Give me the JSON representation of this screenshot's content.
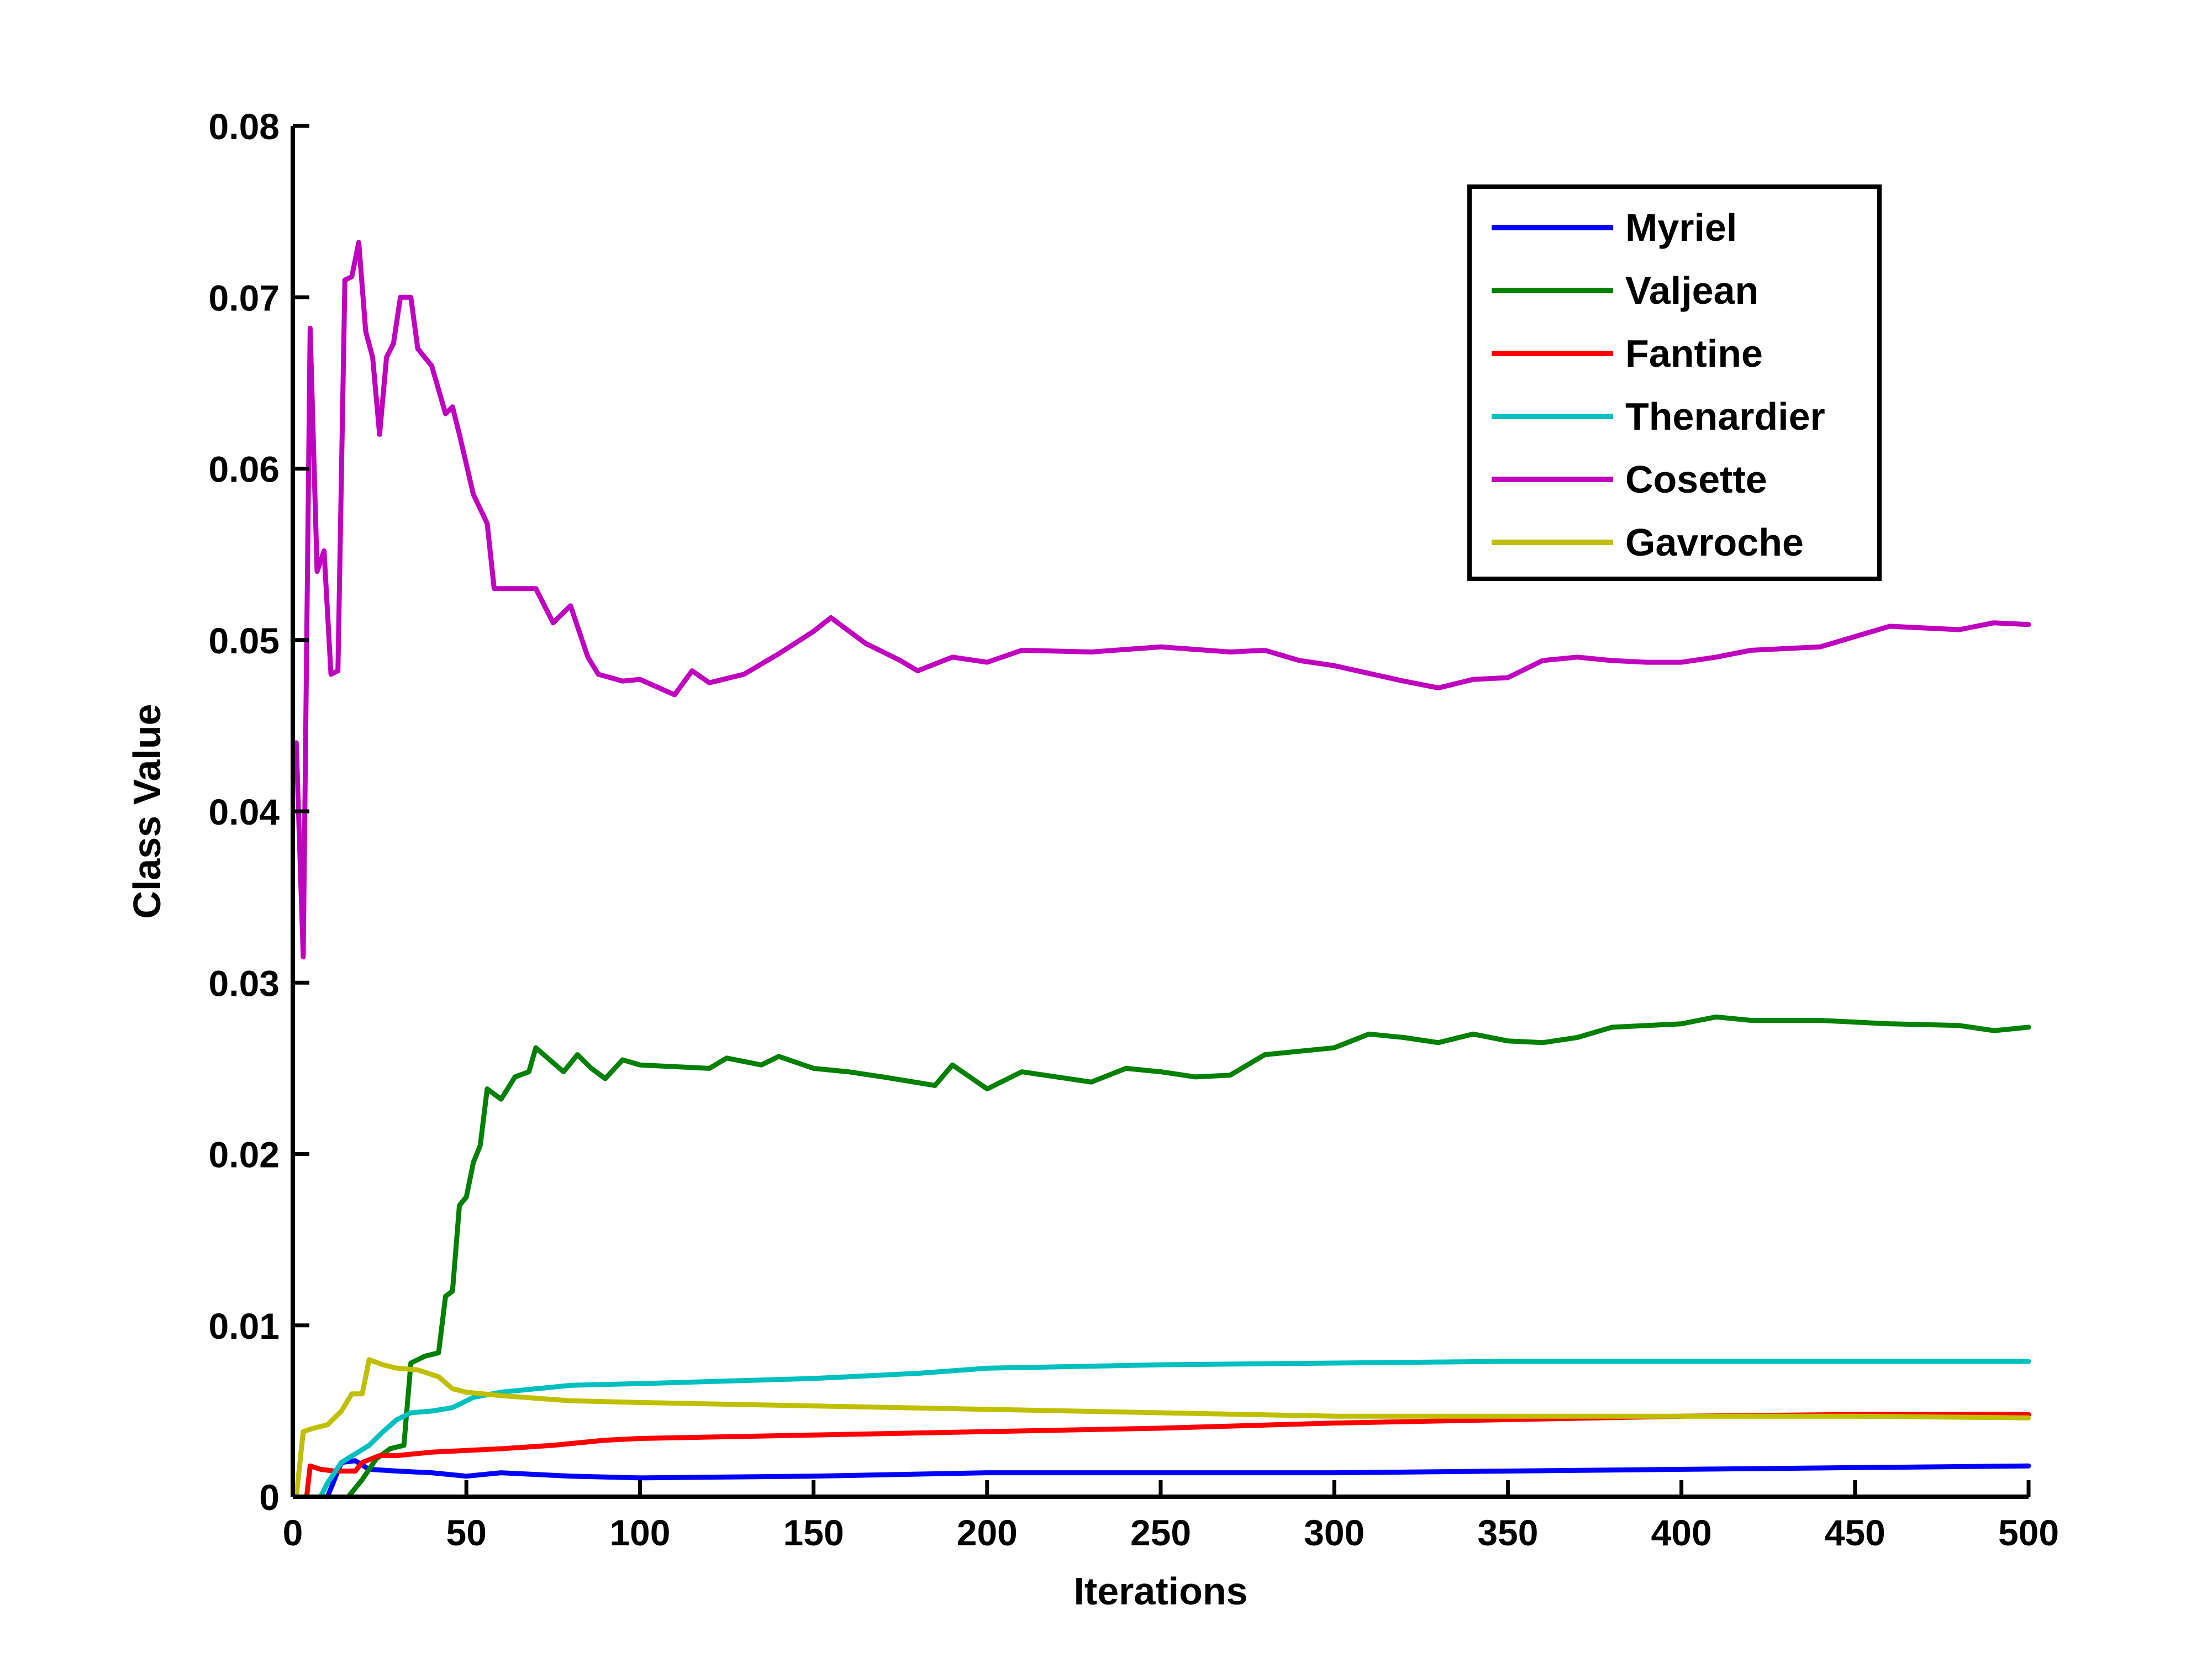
{
  "chart_data": {
    "type": "line",
    "title": "",
    "xlabel": "Iterations",
    "ylabel": "Class Value",
    "xlim": [
      0,
      500
    ],
    "ylim": [
      0,
      0.08
    ],
    "xticks": [
      "0",
      "50",
      "100",
      "150",
      "200",
      "250",
      "300",
      "350",
      "400",
      "450",
      "500"
    ],
    "yticks": [
      "0",
      "0.01",
      "0.02",
      "0.03",
      "0.04",
      "0.05",
      "0.06",
      "0.07",
      "0.08"
    ],
    "grid": false,
    "legend_position": "top-right",
    "series": [
      {
        "name": "Myriel",
        "color": "#0000ff",
        "points": [
          [
            10,
            0
          ],
          [
            14,
            0.002
          ],
          [
            18,
            0.0021
          ],
          [
            22,
            0.0016
          ],
          [
            30,
            0.0015
          ],
          [
            40,
            0.0014
          ],
          [
            50,
            0.0012
          ],
          [
            60,
            0.0014
          ],
          [
            80,
            0.0012
          ],
          [
            100,
            0.0011
          ],
          [
            150,
            0.0012
          ],
          [
            200,
            0.0014
          ],
          [
            250,
            0.0014
          ],
          [
            300,
            0.0014
          ],
          [
            350,
            0.0015
          ],
          [
            400,
            0.0016
          ],
          [
            450,
            0.0017
          ],
          [
            500,
            0.0018
          ]
        ]
      },
      {
        "name": "Valjean",
        "color": "#008000",
        "points": [
          [
            16,
            0
          ],
          [
            20,
            0.001
          ],
          [
            24,
            0.0022
          ],
          [
            28,
            0.0028
          ],
          [
            32,
            0.003
          ],
          [
            34,
            0.0078
          ],
          [
            38,
            0.0082
          ],
          [
            42,
            0.0084
          ],
          [
            44,
            0.0117
          ],
          [
            46,
            0.012
          ],
          [
            48,
            0.017
          ],
          [
            50,
            0.0175
          ],
          [
            52,
            0.0195
          ],
          [
            54,
            0.0205
          ],
          [
            56,
            0.0238
          ],
          [
            60,
            0.0232
          ],
          [
            64,
            0.0245
          ],
          [
            68,
            0.0248
          ],
          [
            70,
            0.0262
          ],
          [
            74,
            0.0255
          ],
          [
            78,
            0.0248
          ],
          [
            82,
            0.0258
          ],
          [
            86,
            0.025
          ],
          [
            90,
            0.0244
          ],
          [
            95,
            0.0255
          ],
          [
            100,
            0.0252
          ],
          [
            120,
            0.025
          ],
          [
            125,
            0.0256
          ],
          [
            135,
            0.0252
          ],
          [
            140,
            0.0257
          ],
          [
            150,
            0.025
          ],
          [
            160,
            0.0248
          ],
          [
            170,
            0.0245
          ],
          [
            185,
            0.024
          ],
          [
            190,
            0.0252
          ],
          [
            200,
            0.0238
          ],
          [
            210,
            0.0248
          ],
          [
            220,
            0.0245
          ],
          [
            230,
            0.0242
          ],
          [
            240,
            0.025
          ],
          [
            250,
            0.0248
          ],
          [
            260,
            0.0245
          ],
          [
            270,
            0.0246
          ],
          [
            280,
            0.0258
          ],
          [
            300,
            0.0262
          ],
          [
            310,
            0.027
          ],
          [
            320,
            0.0268
          ],
          [
            330,
            0.0265
          ],
          [
            340,
            0.027
          ],
          [
            350,
            0.0266
          ],
          [
            360,
            0.0265
          ],
          [
            370,
            0.0268
          ],
          [
            380,
            0.0274
          ],
          [
            400,
            0.0276
          ],
          [
            410,
            0.028
          ],
          [
            420,
            0.0278
          ],
          [
            440,
            0.0278
          ],
          [
            460,
            0.0276
          ],
          [
            480,
            0.0275
          ],
          [
            490,
            0.0272
          ],
          [
            500,
            0.0274
          ]
        ]
      },
      {
        "name": "Fantine",
        "color": "#ff0000",
        "points": [
          [
            4,
            0
          ],
          [
            5,
            0.0018
          ],
          [
            8,
            0.0016
          ],
          [
            12,
            0.0015
          ],
          [
            18,
            0.0015
          ],
          [
            20,
            0.002
          ],
          [
            25,
            0.0024
          ],
          [
            30,
            0.0024
          ],
          [
            40,
            0.0026
          ],
          [
            50,
            0.0027
          ],
          [
            60,
            0.0028
          ],
          [
            75,
            0.003
          ],
          [
            90,
            0.0033
          ],
          [
            100,
            0.0034
          ],
          [
            150,
            0.0036
          ],
          [
            200,
            0.0038
          ],
          [
            250,
            0.004
          ],
          [
            300,
            0.0043
          ],
          [
            350,
            0.0045
          ],
          [
            400,
            0.0047
          ],
          [
            450,
            0.0048
          ],
          [
            500,
            0.0048
          ]
        ]
      },
      {
        "name": "Thenardier",
        "color": "#00bfbf",
        "points": [
          [
            8,
            0
          ],
          [
            10,
            0.0008
          ],
          [
            14,
            0.002
          ],
          [
            18,
            0.0025
          ],
          [
            22,
            0.003
          ],
          [
            26,
            0.0038
          ],
          [
            30,
            0.0045
          ],
          [
            34,
            0.0049
          ],
          [
            40,
            0.005
          ],
          [
            46,
            0.0052
          ],
          [
            52,
            0.0058
          ],
          [
            60,
            0.0061
          ],
          [
            70,
            0.0063
          ],
          [
            80,
            0.0065
          ],
          [
            100,
            0.0066
          ],
          [
            150,
            0.0069
          ],
          [
            180,
            0.0072
          ],
          [
            200,
            0.0075
          ],
          [
            250,
            0.0077
          ],
          [
            300,
            0.0078
          ],
          [
            350,
            0.0079
          ],
          [
            400,
            0.0079
          ],
          [
            450,
            0.0079
          ],
          [
            500,
            0.0079
          ]
        ]
      },
      {
        "name": "Cosette",
        "color": "#bf00bf",
        "points": [
          [
            1,
            0.044
          ],
          [
            3,
            0.0315
          ],
          [
            5,
            0.0682
          ],
          [
            7,
            0.054
          ],
          [
            9,
            0.0552
          ],
          [
            11,
            0.048
          ],
          [
            13,
            0.0482
          ],
          [
            15,
            0.071
          ],
          [
            17,
            0.0712
          ],
          [
            19,
            0.0732
          ],
          [
            21,
            0.068
          ],
          [
            23,
            0.0665
          ],
          [
            25,
            0.062
          ],
          [
            27,
            0.0665
          ],
          [
            29,
            0.0673
          ],
          [
            31,
            0.07
          ],
          [
            34,
            0.07
          ],
          [
            36,
            0.067
          ],
          [
            40,
            0.066
          ],
          [
            44,
            0.0632
          ],
          [
            46,
            0.0636
          ],
          [
            48,
            0.062
          ],
          [
            52,
            0.0585
          ],
          [
            56,
            0.0568
          ],
          [
            58,
            0.053
          ],
          [
            70,
            0.053
          ],
          [
            75,
            0.051
          ],
          [
            80,
            0.052
          ],
          [
            85,
            0.049
          ],
          [
            88,
            0.048
          ],
          [
            95,
            0.0476
          ],
          [
            100,
            0.0477
          ],
          [
            110,
            0.0468
          ],
          [
            115,
            0.0482
          ],
          [
            120,
            0.0475
          ],
          [
            130,
            0.048
          ],
          [
            140,
            0.0492
          ],
          [
            150,
            0.0505
          ],
          [
            155,
            0.0513
          ],
          [
            165,
            0.0498
          ],
          [
            175,
            0.0488
          ],
          [
            180,
            0.0482
          ],
          [
            190,
            0.049
          ],
          [
            200,
            0.0487
          ],
          [
            210,
            0.0494
          ],
          [
            230,
            0.0493
          ],
          [
            250,
            0.0496
          ],
          [
            270,
            0.0493
          ],
          [
            280,
            0.0494
          ],
          [
            290,
            0.0488
          ],
          [
            300,
            0.0485
          ],
          [
            320,
            0.0476
          ],
          [
            330,
            0.0472
          ],
          [
            340,
            0.0477
          ],
          [
            350,
            0.0478
          ],
          [
            360,
            0.0488
          ],
          [
            370,
            0.049
          ],
          [
            380,
            0.0488
          ],
          [
            390,
            0.0487
          ],
          [
            400,
            0.0487
          ],
          [
            410,
            0.049
          ],
          [
            420,
            0.0494
          ],
          [
            440,
            0.0496
          ],
          [
            460,
            0.0508
          ],
          [
            480,
            0.0506
          ],
          [
            490,
            0.051
          ],
          [
            500,
            0.0509
          ]
        ]
      },
      {
        "name": "Gavroche",
        "color": "#bfbf00",
        "points": [
          [
            1,
            0
          ],
          [
            3,
            0.0038
          ],
          [
            6,
            0.004
          ],
          [
            10,
            0.0042
          ],
          [
            14,
            0.005
          ],
          [
            17,
            0.006
          ],
          [
            20,
            0.006
          ],
          [
            22,
            0.008
          ],
          [
            26,
            0.0077
          ],
          [
            30,
            0.0075
          ],
          [
            36,
            0.0074
          ],
          [
            42,
            0.007
          ],
          [
            46,
            0.0063
          ],
          [
            50,
            0.0061
          ],
          [
            60,
            0.0059
          ],
          [
            80,
            0.0056
          ],
          [
            100,
            0.0055
          ],
          [
            150,
            0.0053
          ],
          [
            200,
            0.0051
          ],
          [
            250,
            0.0049
          ],
          [
            300,
            0.0047
          ],
          [
            350,
            0.0047
          ],
          [
            400,
            0.0047
          ],
          [
            450,
            0.0047
          ],
          [
            500,
            0.0046
          ]
        ]
      }
    ]
  }
}
